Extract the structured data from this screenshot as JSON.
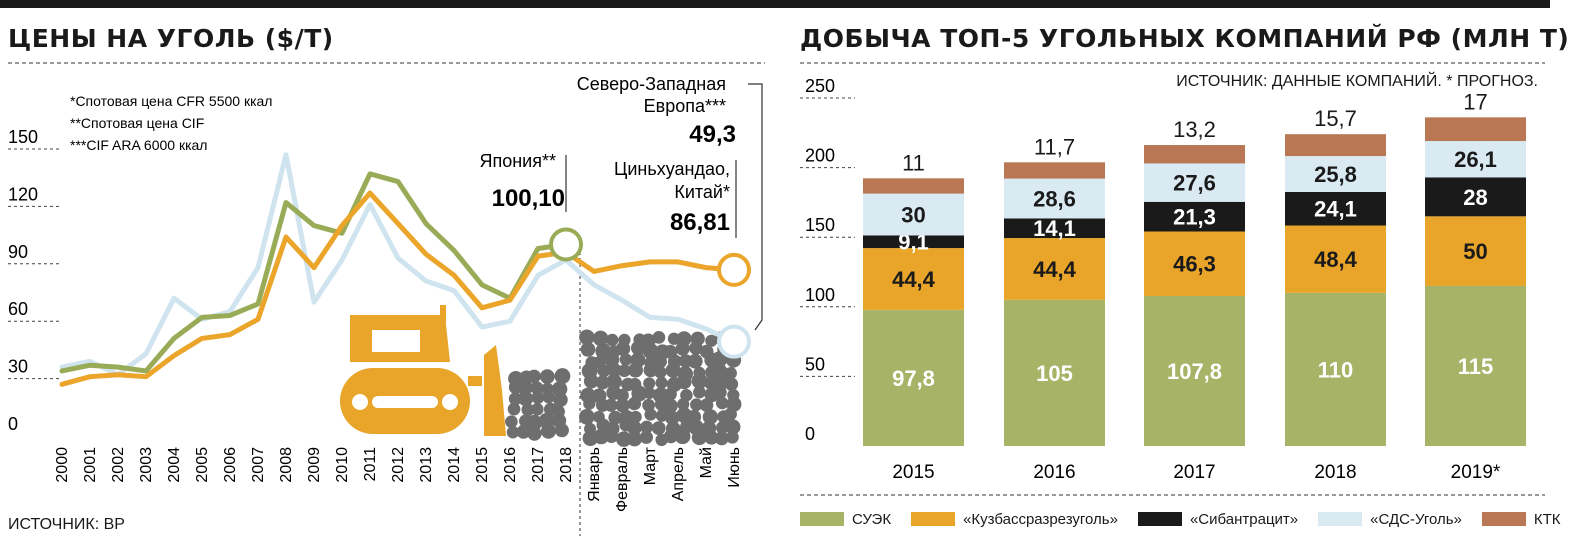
{
  "colors": {
    "japan": "#9aab57",
    "china": "#eaa52a",
    "nw_europe": "#cfe4ef",
    "suek": "#a7b366",
    "kuzbass": "#e8a52a",
    "sibantracit": "#1a1a1a",
    "sds": "#d9eaf3",
    "ktk": "#b97754",
    "bulldozer": "#e8a52a",
    "coal": "#6e6e6e"
  },
  "left": {
    "title": "ЦЕНЫ НА УГОЛЬ ($/Т)",
    "source": "ИСТОЧНИК: BP",
    "notes": [
      "*Спотовая цена CFR 5500 ккал",
      "**Спотовая цена CIF",
      "***CIF ARA 6000 ккал"
    ],
    "labels": {
      "japan_name": "Япония**",
      "japan_value": "100,10",
      "china_name_1": "Циньхуандао,",
      "china_name_2": "Китай*",
      "china_value": "86,81",
      "europe_name_1": "Северо-Западная",
      "europe_name_2": "Европа***",
      "europe_value": "49,3"
    }
  },
  "right": {
    "title": "ДОБЫЧА ТОП-5 УГОЛЬНЫХ КОМПАНИЙ РФ (МЛН Т)",
    "source": "ИСТОЧНИК: ДАННЫЕ КОМПАНИЙ. * ПРОГНОЗ.",
    "legend": [
      "СУЭК",
      "«Кузбассразрезуголь»",
      "«Сибантрацит»",
      "«СДС-Уголь»",
      "КТК"
    ]
  },
  "chart_data": [
    {
      "type": "line",
      "title": "ЦЕНЫ НА УГОЛЬ ($/Т)",
      "x": [
        "2000",
        "2001",
        "2002",
        "2003",
        "2004",
        "2005",
        "2006",
        "2007",
        "2008",
        "2009",
        "2010",
        "2011",
        "2012",
        "2013",
        "2014",
        "2015",
        "2016",
        "2017",
        "2018",
        "Январь",
        "Февраль",
        "Март",
        "Апрель",
        "Май",
        "Июнь"
      ],
      "yticks": [
        "0",
        "30",
        "60",
        "90",
        "120",
        "150"
      ],
      "ylim": [
        0,
        150
      ],
      "series": [
        {
          "name": "Япония**",
          "values": [
            34,
            37,
            36,
            34,
            51,
            62,
            63,
            69,
            122,
            110,
            106,
            137,
            133,
            111,
            97,
            79,
            72,
            98,
            100.1,
            null,
            null,
            null,
            null,
            null,
            null
          ]
        },
        {
          "name": "Циньхуандао, Китай*",
          "values": [
            27,
            31,
            32,
            31,
            42,
            51,
            53,
            61,
            104,
            88,
            110,
            127,
            111,
            95,
            84,
            67,
            71,
            94,
            96,
            86,
            89,
            91,
            91,
            88,
            86.81
          ]
        },
        {
          "name": "Северо-Западная Европа***",
          "values": [
            36,
            39,
            32,
            43,
            72,
            61,
            65,
            88,
            147,
            70,
            92,
            121,
            93,
            81,
            76,
            57,
            60,
            84,
            92,
            79,
            71,
            62,
            61,
            56,
            49.3
          ]
        }
      ]
    },
    {
      "type": "bar",
      "title": "ДОБЫЧА ТОП-5 УГОЛЬНЫХ КОМПАНИЙ РФ (МЛН Т)",
      "categories": [
        "2015",
        "2016",
        "2017",
        "2018",
        "2019*"
      ],
      "yticks": [
        "0",
        "50",
        "100",
        "150",
        "200",
        "250"
      ],
      "ylim": [
        0,
        250
      ],
      "series": [
        {
          "name": "СУЭК",
          "values": [
            97.8,
            105,
            107.8,
            110,
            115
          ],
          "labels": [
            "97,8",
            "105",
            "107,8",
            "110",
            "115"
          ]
        },
        {
          "name": "«Кузбассразрезуголь»",
          "values": [
            44.4,
            44.4,
            46.3,
            48.4,
            50
          ],
          "labels": [
            "44,4",
            "44,4",
            "46,3",
            "48,4",
            "50"
          ]
        },
        {
          "name": "«Сибантрацит»",
          "values": [
            9.1,
            14.1,
            21.3,
            24.1,
            28
          ],
          "labels": [
            "9,1",
            "14,1",
            "21,3",
            "24,1",
            "28"
          ]
        },
        {
          "name": "«СДС-Уголь»",
          "values": [
            30,
            28.6,
            27.6,
            25.8,
            26.1
          ],
          "labels": [
            "30",
            "28,6",
            "27,6",
            "25,8",
            "26,1"
          ]
        },
        {
          "name": "КТК",
          "values": [
            11,
            11.7,
            13.2,
            15.7,
            17
          ],
          "labels": [
            "11",
            "11,7",
            "13,2",
            "15,7",
            "17"
          ]
        }
      ]
    }
  ]
}
